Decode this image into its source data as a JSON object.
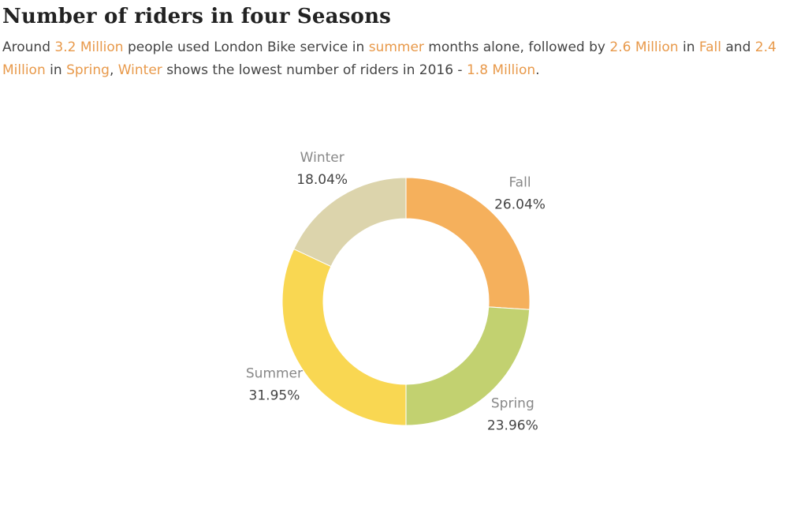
{
  "title": "Number of riders in four Seasons",
  "subtitle": {
    "s1": "Around ",
    "h1": "3.2 Million",
    "s2": " people used London Bike service in ",
    "h2": "summer",
    "s3": " months alone, followed by ",
    "h3": "2.6 Million",
    "s4": " in ",
    "h4": "Fall",
    "s5": " and ",
    "h5": "2.4 Million",
    "s6": " in ",
    "h6": "Spring",
    "s7": ", ",
    "h7": "Winter",
    "s8": " shows the lowest number of riders in 2016 - ",
    "h8": "1.8 Million",
    "s9": "."
  },
  "colors": {
    "highlight": "#e8994a"
  },
  "chart_data": {
    "type": "pie",
    "donut": true,
    "slices": [
      {
        "label": "Fall",
        "value": 26.04,
        "display": "26.04%",
        "color": "#f5b05c"
      },
      {
        "label": "Spring",
        "value": 23.96,
        "display": "23.96%",
        "color": "#c2d170"
      },
      {
        "label": "Summer",
        "value": 31.95,
        "display": "31.95%",
        "color": "#f9d752"
      },
      {
        "label": "Winter",
        "value": 18.04,
        "display": "18.04%",
        "color": "#dcd4ac"
      }
    ]
  }
}
